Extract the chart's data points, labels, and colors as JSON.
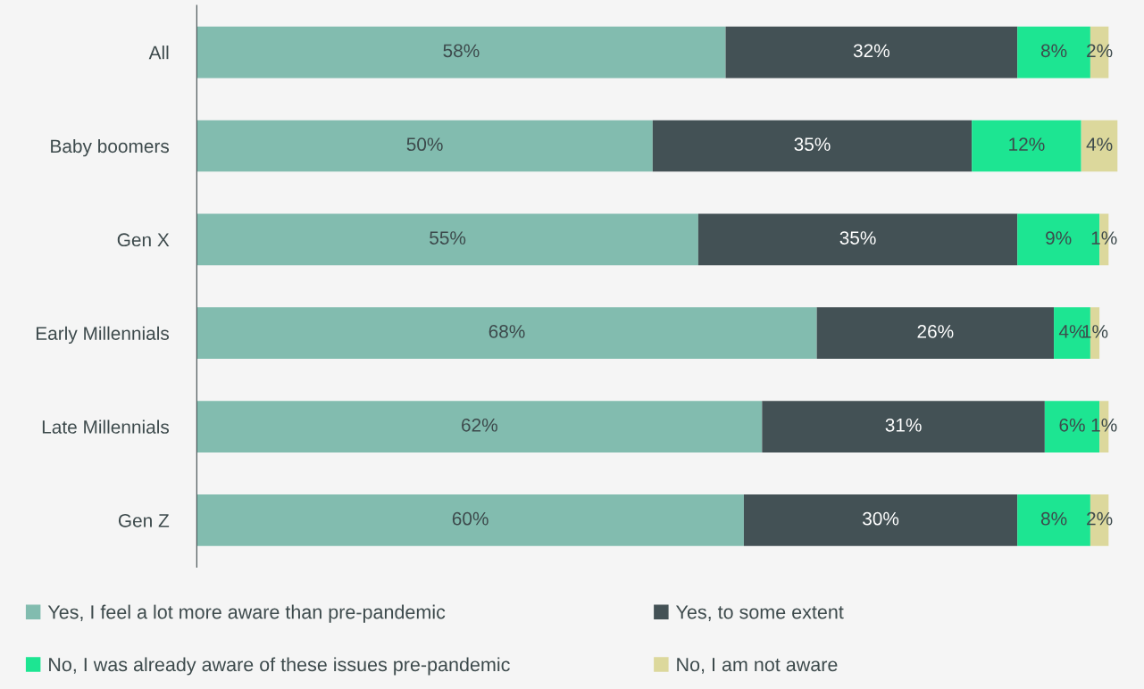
{
  "chart_data": {
    "type": "bar",
    "orientation": "horizontal",
    "stacked": true,
    "legend": "bottom",
    "tick_labels": "y",
    "categories": [
      "All",
      "Baby boomers",
      "Gen X",
      "Early Millennials",
      "Late Millennials",
      "Gen Z"
    ],
    "series": [
      {
        "name": "Yes, I feel a lot more aware than pre-pandemic",
        "color": "#82bcaf",
        "values": [
          58,
          50,
          55,
          68,
          62,
          60
        ],
        "value_labels": [
          "58%",
          "50%",
          "55%",
          "68%",
          "62%",
          "60%"
        ]
      },
      {
        "name": "Yes, to some extent",
        "color": "#435155",
        "values": [
          32,
          35,
          35,
          26,
          31,
          30
        ],
        "value_labels": [
          "32%",
          "35%",
          "35%",
          "26%",
          "31%",
          "30%"
        ]
      },
      {
        "name": "No, I was already aware of these issues pre-pandemic",
        "color": "#1de592",
        "values": [
          8,
          12,
          9,
          4,
          6,
          8
        ],
        "value_labels": [
          "8%",
          "12%",
          "9%",
          "4%",
          "6%",
          "8%"
        ]
      },
      {
        "name": "No, I am not aware",
        "color": "#dcd89c",
        "values": [
          2,
          4,
          1,
          1,
          1,
          2
        ],
        "value_labels": [
          "2%",
          "4%",
          "1%",
          "1%",
          "1%",
          "2%"
        ]
      }
    ]
  }
}
